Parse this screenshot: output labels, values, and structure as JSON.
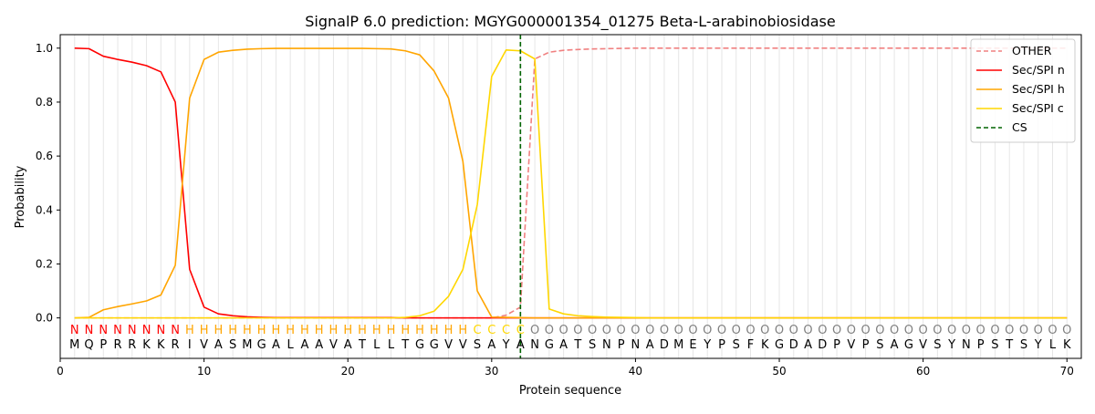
{
  "chart_data": {
    "type": "line",
    "title": "SignalP 6.0 prediction: MGYG000001354_01275 Beta-L-arabinobiosidase",
    "xlabel": "Protein sequence",
    "ylabel": "Probability",
    "xlim": [
      0,
      71
    ],
    "ylim": [
      -0.15,
      1.05
    ],
    "x_ticks": [
      0,
      10,
      20,
      30,
      40,
      50,
      60,
      70
    ],
    "y_ticks": [
      0.0,
      0.2,
      0.4,
      0.6,
      0.8,
      1.0
    ],
    "grid": "vertical lines at each residue position",
    "legend_position": "top-right",
    "colors": {
      "OTHER": "#f08080",
      "Sec/SPI n": "#ff0000",
      "Sec/SPI h": "#ffa500",
      "Sec/SPI c": "#ffd700",
      "CS": "#006400",
      "O_label": "#808080"
    },
    "sequence": [
      "M",
      "Q",
      "P",
      "R",
      "R",
      "K",
      "K",
      "R",
      "I",
      "V",
      "A",
      "S",
      "M",
      "G",
      "A",
      "L",
      "A",
      "A",
      "V",
      "A",
      "T",
      "L",
      "L",
      "T",
      "G",
      "G",
      "V",
      "V",
      "S",
      "A",
      "Y",
      "A",
      "N",
      "G",
      "A",
      "T",
      "S",
      "N",
      "P",
      "N",
      "A",
      "D",
      "M",
      "E",
      "Y",
      "P",
      "S",
      "F",
      "K",
      "G",
      "D",
      "A",
      "D",
      "P",
      "V",
      "P",
      "S",
      "A",
      "G",
      "V",
      "S",
      "Y",
      "N",
      "P",
      "S",
      "T",
      "S",
      "Y",
      "L",
      "K"
    ],
    "region_labels": [
      "N",
      "N",
      "N",
      "N",
      "N",
      "N",
      "N",
      "N",
      "H",
      "H",
      "H",
      "H",
      "H",
      "H",
      "H",
      "H",
      "H",
      "H",
      "H",
      "H",
      "H",
      "H",
      "H",
      "H",
      "H",
      "H",
      "H",
      "H",
      "C",
      "C",
      "C",
      "C",
      "O",
      "O",
      "O",
      "O",
      "O",
      "O",
      "O",
      "O",
      "O",
      "O",
      "O",
      "O",
      "O",
      "O",
      "O",
      "O",
      "O",
      "O",
      "O",
      "O",
      "O",
      "O",
      "O",
      "O",
      "O",
      "O",
      "O",
      "O",
      "O",
      "O",
      "O",
      "O",
      "O",
      "O",
      "O",
      "O",
      "O",
      "O"
    ],
    "cs_position": 32,
    "series": [
      {
        "name": "OTHER",
        "style": "dashed",
        "values": [
          0.0,
          0.0,
          0.0,
          0.0,
          0.0,
          0.0,
          0.0,
          0.0,
          0.0,
          0.0,
          0.0,
          0.0,
          0.0,
          0.0,
          0.0,
          0.0,
          0.0,
          0.0,
          0.0,
          0.0,
          0.0,
          0.0,
          0.0,
          0.0,
          0.0,
          0.0,
          0.0,
          0.0,
          0.0,
          0.0,
          0.01,
          0.04,
          0.96,
          0.985,
          0.992,
          0.995,
          0.997,
          0.998,
          0.999,
          1.0,
          1.0,
          1.0,
          1.0,
          1.0,
          1.0,
          1.0,
          1.0,
          1.0,
          1.0,
          1.0,
          1.0,
          1.0,
          1.0,
          1.0,
          1.0,
          1.0,
          1.0,
          1.0,
          1.0,
          1.0,
          1.0,
          1.0,
          1.0,
          1.0,
          1.0,
          1.0,
          1.0,
          1.0,
          1.0,
          1.0
        ]
      },
      {
        "name": "Sec/SPI n",
        "style": "solid",
        "values": [
          1.0,
          0.998,
          0.97,
          0.958,
          0.948,
          0.935,
          0.912,
          0.8,
          0.18,
          0.04,
          0.015,
          0.008,
          0.004,
          0.002,
          0.001,
          0.001,
          0.001,
          0.001,
          0.001,
          0.001,
          0.001,
          0.001,
          0.001,
          0.0,
          0.0,
          0.0,
          0.0,
          0.0,
          0.0,
          0.0,
          0.0,
          0.0,
          0.0,
          0.0,
          0.0,
          0.0,
          0.0,
          0.0,
          0.0,
          0.0,
          0.0,
          0.0,
          0.0,
          0.0,
          0.0,
          0.0,
          0.0,
          0.0,
          0.0,
          0.0,
          0.0,
          0.0,
          0.0,
          0.0,
          0.0,
          0.0,
          0.0,
          0.0,
          0.0,
          0.0,
          0.0,
          0.0,
          0.0,
          0.0,
          0.0,
          0.0,
          0.0,
          0.0,
          0.0,
          0.0
        ]
      },
      {
        "name": "Sec/SPI h",
        "style": "solid",
        "values": [
          0.0,
          0.002,
          0.03,
          0.042,
          0.052,
          0.063,
          0.085,
          0.195,
          0.815,
          0.958,
          0.985,
          0.992,
          0.996,
          0.998,
          0.999,
          0.999,
          0.999,
          0.999,
          0.999,
          0.999,
          0.999,
          0.998,
          0.997,
          0.99,
          0.975,
          0.915,
          0.815,
          0.58,
          0.1,
          0.003,
          0.002,
          0.001,
          0.0,
          0.0,
          0.0,
          0.0,
          0.0,
          0.0,
          0.0,
          0.0,
          0.0,
          0.0,
          0.0,
          0.0,
          0.0,
          0.0,
          0.0,
          0.0,
          0.0,
          0.0,
          0.0,
          0.0,
          0.0,
          0.0,
          0.0,
          0.0,
          0.0,
          0.0,
          0.0,
          0.0,
          0.0,
          0.0,
          0.0,
          0.0,
          0.0,
          0.0,
          0.0,
          0.0,
          0.0,
          0.0
        ]
      },
      {
        "name": "Sec/SPI c",
        "style": "solid",
        "values": [
          0.0,
          0.0,
          0.0,
          0.0,
          0.0,
          0.0,
          0.0,
          0.0,
          0.0,
          0.0,
          0.0,
          0.0,
          0.0,
          0.0,
          0.0,
          0.0,
          0.0,
          0.0,
          0.0,
          0.0,
          0.0,
          0.0,
          0.0,
          0.002,
          0.008,
          0.025,
          0.08,
          0.18,
          0.42,
          0.895,
          0.993,
          0.99,
          0.96,
          0.033,
          0.015,
          0.008,
          0.005,
          0.003,
          0.002,
          0.001,
          0.0,
          0.0,
          0.0,
          0.0,
          0.0,
          0.0,
          0.0,
          0.0,
          0.0,
          0.0,
          0.0,
          0.0,
          0.0,
          0.0,
          0.0,
          0.0,
          0.0,
          0.0,
          0.0,
          0.0,
          0.0,
          0.0,
          0.0,
          0.0,
          0.0,
          0.0,
          0.0,
          0.0,
          0.0,
          0.0
        ]
      },
      {
        "name": "CS",
        "style": "dashed-vertical"
      }
    ]
  }
}
